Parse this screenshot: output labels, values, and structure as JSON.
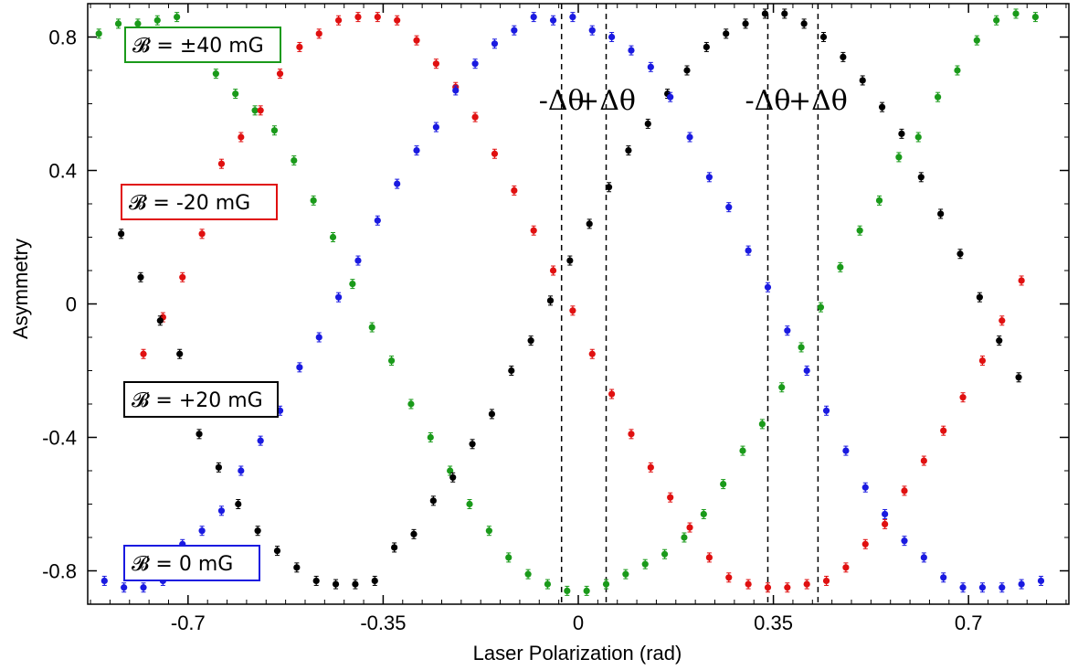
{
  "chart_data": {
    "type": "scatter",
    "title": "",
    "xlabel": "Laser Polarization (rad)",
    "ylabel": "Asymmetry",
    "xlim": [
      -0.88,
      0.88
    ],
    "ylim": [
      -0.9,
      0.9
    ],
    "x_ticks": [
      -0.7,
      -0.35,
      0,
      0.35,
      0.7
    ],
    "x_tick_labels": [
      "-0.7",
      "-0.35",
      "0",
      "0.35",
      "0.7"
    ],
    "y_ticks": [
      -0.8,
      -0.4,
      0,
      0.4,
      0.8
    ],
    "y_tick_labels": [
      "-0.8",
      "-0.4",
      "0",
      "0.4",
      "0.8"
    ],
    "grid": false,
    "x_step": 0.035,
    "series": [
      {
        "name": "𝓑 = ±40 mG",
        "color": "#1a9a1a",
        "x_start": -0.86,
        "values": [
          0.81,
          0.84,
          0.84,
          0.85,
          0.86,
          0.78,
          0.69,
          0.63,
          0.58,
          0.52,
          0.43,
          0.31,
          0.2,
          0.06,
          -0.07,
          -0.17,
          -0.3,
          -0.4,
          -0.5,
          -0.6,
          -0.68,
          -0.76,
          -0.81,
          -0.84,
          -0.86,
          -0.86,
          -0.84,
          -0.81,
          -0.78,
          -0.75,
          -0.7,
          -0.63,
          -0.54,
          -0.44,
          -0.36,
          -0.25,
          -0.13,
          -0.01,
          0.11,
          0.22,
          0.31,
          0.44,
          0.5,
          0.62,
          0.7,
          0.79,
          0.85,
          0.87,
          0.86
        ]
      },
      {
        "name": "𝓑 = -20 mG",
        "color": "#e01010",
        "x_start": -0.78,
        "values": [
          -0.15,
          -0.04,
          0.08,
          0.21,
          0.42,
          0.5,
          0.58,
          0.69,
          0.77,
          0.81,
          0.85,
          0.86,
          0.86,
          0.85,
          0.79,
          0.72,
          0.65,
          0.56,
          0.45,
          0.34,
          0.22,
          0.1,
          -0.02,
          -0.15,
          -0.27,
          -0.39,
          -0.49,
          -0.58,
          -0.67,
          -0.76,
          -0.82,
          -0.84,
          -0.85,
          -0.85,
          -0.84,
          -0.83,
          -0.79,
          -0.72,
          -0.66,
          -0.56,
          -0.47,
          -0.38,
          -0.28,
          -0.17,
          -0.05,
          0.07
        ]
      },
      {
        "name": "𝓑 = +20 mG",
        "color": "#000000",
        "x_start": -0.82,
        "values": [
          0.21,
          0.08,
          -0.05,
          -0.15,
          -0.39,
          -0.49,
          -0.6,
          -0.68,
          -0.74,
          -0.79,
          -0.83,
          -0.84,
          -0.84,
          -0.83,
          -0.73,
          -0.69,
          -0.59,
          -0.52,
          -0.42,
          -0.33,
          -0.2,
          -0.11,
          0.01,
          0.13,
          0.24,
          0.35,
          0.46,
          0.54,
          0.63,
          0.7,
          0.77,
          0.81,
          0.84,
          0.87,
          0.87,
          0.84,
          0.8,
          0.74,
          0.67,
          0.59,
          0.51,
          0.38,
          0.27,
          0.15,
          0.02,
          -0.11,
          -0.22
        ]
      },
      {
        "name": "𝓑 = 0 mG",
        "color": "#1a1ae0",
        "x_start": -0.85,
        "values": [
          -0.83,
          -0.85,
          -0.85,
          -0.83,
          -0.72,
          -0.68,
          -0.62,
          -0.5,
          -0.41,
          -0.32,
          -0.19,
          -0.1,
          0.02,
          0.13,
          0.25,
          0.36,
          0.46,
          0.53,
          0.64,
          0.72,
          0.78,
          0.82,
          0.86,
          0.85,
          0.86,
          0.82,
          0.8,
          0.76,
          0.71,
          0.62,
          0.5,
          0.38,
          0.29,
          0.16,
          0.05,
          -0.08,
          -0.2,
          -0.32,
          -0.44,
          -0.55,
          -0.63,
          -0.71,
          -0.76,
          -0.82,
          -0.85,
          -0.85,
          -0.85,
          -0.84,
          -0.83
        ]
      }
    ],
    "annotations": [
      {
        "text": "-Δθ",
        "x": -0.03
      },
      {
        "text": "+Δθ",
        "x": 0.05
      },
      {
        "text": "-Δθ",
        "x": 0.34
      },
      {
        "text": "+Δθ",
        "x": 0.43
      }
    ],
    "legend_boxes": [
      {
        "text": "𝓑 = ±40 mG",
        "color": "#1a9a1a"
      },
      {
        "text": "𝓑 = -20 mG",
        "color": "#e01010"
      },
      {
        "text": "𝓑 = +20 mG",
        "color": "#000000"
      },
      {
        "text": "𝓑 = 0 mG",
        "color": "#1a1ae0"
      }
    ],
    "legend_placement": "left, stacked as labels beside curves"
  }
}
